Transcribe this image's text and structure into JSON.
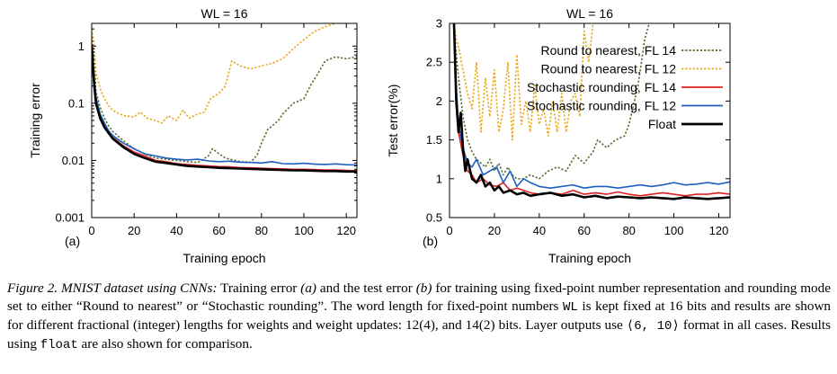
{
  "colors": {
    "round_fl14": "#556b2f",
    "round_fl12": "#e6a817",
    "stoch_fl14": "#e02020",
    "stoch_fl12": "#1f5fbf",
    "float": "#000000"
  },
  "chart_data": [
    {
      "id": "a",
      "panel_label": "(a)",
      "type": "line",
      "title": "WL = 16",
      "xlabel": "Training epoch",
      "ylabel": "Training error",
      "yscale": "log",
      "xlim": [
        0,
        125
      ],
      "ylim": [
        0.001,
        2.5
      ],
      "xticks": [
        0,
        20,
        40,
        60,
        80,
        100,
        120
      ],
      "xtick_labels": [
        "0",
        "20",
        "40",
        "60",
        "80",
        "100",
        "120"
      ],
      "yticks": [
        0.001,
        0.01,
        0.1,
        1
      ],
      "ytick_labels": [
        "0.001",
        "0.01",
        "0.1",
        "1"
      ],
      "series": [
        {
          "name": "Round to nearest, FL 14",
          "style": "dotted",
          "color_key": "round_fl14",
          "x": [
            0,
            1,
            2,
            4,
            6,
            8,
            10,
            15,
            20,
            25,
            30,
            35,
            40,
            45,
            50,
            55,
            57,
            60,
            63,
            65,
            70,
            75,
            78,
            80,
            83,
            85,
            88,
            90,
            95,
            100,
            103,
            107,
            110,
            115,
            120,
            125
          ],
          "y": [
            2.0,
            0.7,
            0.16,
            0.085,
            0.055,
            0.04,
            0.032,
            0.022,
            0.016,
            0.013,
            0.011,
            0.0105,
            0.01,
            0.0095,
            0.0092,
            0.012,
            0.016,
            0.013,
            0.011,
            0.0105,
            0.0095,
            0.0093,
            0.0125,
            0.02,
            0.035,
            0.04,
            0.05,
            0.065,
            0.1,
            0.12,
            0.2,
            0.35,
            0.55,
            0.65,
            0.6,
            0.65
          ]
        },
        {
          "name": "Round to nearest, FL 12",
          "style": "dotted",
          "color_key": "round_fl12",
          "x": [
            0,
            1,
            2,
            4,
            6,
            8,
            10,
            13,
            16,
            20,
            23,
            26,
            30,
            33,
            36,
            40,
            43,
            46,
            50,
            53,
            56,
            60,
            63,
            66,
            70,
            75,
            80,
            85,
            90,
            95,
            100,
            105,
            110,
            115,
            120
          ],
          "y": [
            2.0,
            1.2,
            0.35,
            0.18,
            0.12,
            0.09,
            0.075,
            0.065,
            0.06,
            0.058,
            0.07,
            0.055,
            0.05,
            0.045,
            0.06,
            0.05,
            0.075,
            0.055,
            0.065,
            0.07,
            0.12,
            0.15,
            0.2,
            0.55,
            0.45,
            0.4,
            0.45,
            0.5,
            0.6,
            0.9,
            1.3,
            1.8,
            2.2,
            2.5,
            2.8
          ]
        },
        {
          "name": "Stochastic rounding, FL 14",
          "style": "solid",
          "color_key": "stoch_fl14",
          "x": [
            0,
            1,
            2,
            4,
            6,
            8,
            10,
            15,
            20,
            25,
            30,
            35,
            40,
            45,
            50,
            55,
            60,
            65,
            70,
            75,
            80,
            85,
            90,
            95,
            100,
            105,
            110,
            115,
            120,
            125
          ],
          "y": [
            1.1,
            0.3,
            0.12,
            0.06,
            0.04,
            0.03,
            0.025,
            0.018,
            0.014,
            0.012,
            0.01,
            0.0095,
            0.0088,
            0.0085,
            0.0082,
            0.008,
            0.0078,
            0.0077,
            0.0075,
            0.0074,
            0.0073,
            0.0072,
            0.0071,
            0.007,
            0.007,
            0.0069,
            0.0068,
            0.0068,
            0.0067,
            0.0066
          ]
        },
        {
          "name": "Stochastic rounding, FL 12",
          "style": "solid",
          "color_key": "stoch_fl12",
          "x": [
            0,
            1,
            2,
            4,
            6,
            8,
            10,
            15,
            20,
            25,
            30,
            35,
            40,
            45,
            50,
            55,
            60,
            65,
            70,
            75,
            80,
            85,
            90,
            95,
            100,
            105,
            110,
            115,
            120,
            125
          ],
          "y": [
            1.1,
            0.35,
            0.13,
            0.065,
            0.045,
            0.033,
            0.027,
            0.02,
            0.016,
            0.013,
            0.012,
            0.011,
            0.0105,
            0.0102,
            0.0105,
            0.0098,
            0.0095,
            0.0097,
            0.0093,
            0.0092,
            0.009,
            0.0095,
            0.0088,
            0.0087,
            0.0089,
            0.0086,
            0.0085,
            0.0087,
            0.0084,
            0.0083
          ]
        },
        {
          "name": "Float",
          "style": "solid",
          "color_key": "float",
          "x": [
            0,
            1,
            2,
            4,
            6,
            8,
            10,
            15,
            20,
            25,
            30,
            35,
            40,
            45,
            50,
            55,
            60,
            65,
            70,
            75,
            80,
            85,
            90,
            95,
            100,
            105,
            110,
            115,
            120,
            125
          ],
          "y": [
            1.0,
            0.25,
            0.1,
            0.055,
            0.038,
            0.03,
            0.024,
            0.017,
            0.013,
            0.011,
            0.0095,
            0.009,
            0.0085,
            0.008,
            0.0078,
            0.0076,
            0.0074,
            0.0073,
            0.0072,
            0.0071,
            0.007,
            0.0069,
            0.0068,
            0.0067,
            0.0067,
            0.0066,
            0.0065,
            0.0065,
            0.0064,
            0.0064
          ]
        }
      ]
    },
    {
      "id": "b",
      "panel_label": "(b)",
      "type": "line",
      "title": "WL = 16",
      "xlabel": "Training epoch",
      "ylabel": "Test error(%)",
      "yscale": "linear",
      "xlim": [
        0,
        125
      ],
      "ylim": [
        0.5,
        3
      ],
      "xticks": [
        0,
        20,
        40,
        60,
        80,
        100,
        120
      ],
      "xtick_labels": [
        "0",
        "20",
        "40",
        "60",
        "80",
        "100",
        "120"
      ],
      "yticks": [
        0.5,
        1,
        1.5,
        2,
        2.5,
        3
      ],
      "ytick_labels": [
        "0.5",
        "1",
        "1.5",
        "2",
        "2.5",
        "3"
      ],
      "legend_position": "top-right",
      "series": [
        {
          "name": "Round to nearest, FL 14",
          "style": "dotted",
          "color_key": "round_fl14",
          "x": [
            2,
            3,
            4,
            6,
            8,
            10,
            12,
            14,
            16,
            18,
            20,
            22,
            24,
            26,
            28,
            30,
            33,
            36,
            40,
            44,
            48,
            52,
            56,
            60,
            64,
            66,
            70,
            74,
            78,
            80,
            84,
            87,
            89
          ],
          "y": [
            3.0,
            2.6,
            2.3,
            1.8,
            1.5,
            1.35,
            1.25,
            1.2,
            1.15,
            1.25,
            1.1,
            1.2,
            1.05,
            1.15,
            1.05,
            1.0,
            1.0,
            1.05,
            1.0,
            1.1,
            1.15,
            1.1,
            1.3,
            1.2,
            1.35,
            1.5,
            1.4,
            1.5,
            1.55,
            1.7,
            2.2,
            2.8,
            3.0
          ]
        },
        {
          "name": "Round to nearest, FL 12",
          "style": "dotted",
          "color_key": "round_fl12",
          "x": [
            2,
            3,
            4,
            6,
            8,
            10,
            12,
            14,
            16,
            18,
            20,
            22,
            24,
            26,
            28,
            30,
            32,
            34,
            36,
            38,
            40,
            42,
            44,
            46,
            48,
            50,
            52,
            54,
            56,
            58,
            60,
            62,
            64
          ],
          "y": [
            3.0,
            2.8,
            2.7,
            2.4,
            2.1,
            1.9,
            2.5,
            1.6,
            2.3,
            1.8,
            2.4,
            1.6,
            1.9,
            2.5,
            1.5,
            2.6,
            1.7,
            2.0,
            1.6,
            2.2,
            1.7,
            1.9,
            1.55,
            2.0,
            1.6,
            2.1,
            1.6,
            2.0,
            2.1,
            1.8,
            2.9,
            2.5,
            3.0
          ]
        },
        {
          "name": "Stochastic rounding, FL 14",
          "style": "solid",
          "color_key": "stoch_fl14",
          "x": [
            2,
            3,
            4,
            6,
            8,
            10,
            12,
            15,
            18,
            21,
            24,
            27,
            30,
            33,
            36,
            40,
            45,
            50,
            55,
            60,
            65,
            70,
            75,
            80,
            85,
            90,
            95,
            100,
            105,
            110,
            115,
            120,
            125
          ],
          "y": [
            3.0,
            2.0,
            1.6,
            1.3,
            1.1,
            1.05,
            0.95,
            1.0,
            0.92,
            0.9,
            0.95,
            0.85,
            0.88,
            0.85,
            0.82,
            0.8,
            0.82,
            0.8,
            0.85,
            0.8,
            0.82,
            0.8,
            0.83,
            0.8,
            0.78,
            0.8,
            0.82,
            0.8,
            0.78,
            0.8,
            0.8,
            0.82,
            0.8
          ]
        },
        {
          "name": "Stochastic rounding, FL 12",
          "style": "solid",
          "color_key": "stoch_fl12",
          "x": [
            2,
            3,
            4,
            6,
            8,
            10,
            12,
            15,
            18,
            21,
            24,
            27,
            30,
            33,
            36,
            40,
            45,
            50,
            55,
            60,
            65,
            70,
            75,
            80,
            85,
            90,
            95,
            100,
            105,
            110,
            115,
            120,
            125
          ],
          "y": [
            3.0,
            2.2,
            1.7,
            1.4,
            1.2,
            1.15,
            1.25,
            1.05,
            1.1,
            1.15,
            0.95,
            1.1,
            0.9,
            1.0,
            0.95,
            0.9,
            0.88,
            0.9,
            0.92,
            0.88,
            0.9,
            0.9,
            0.88,
            0.9,
            0.92,
            0.9,
            0.92,
            0.95,
            0.92,
            0.93,
            0.95,
            0.93,
            0.96
          ]
        },
        {
          "name": "Float",
          "style": "solid",
          "color_key": "float",
          "x": [
            2,
            3,
            4,
            5,
            6,
            7,
            8,
            10,
            12,
            14,
            16,
            18,
            20,
            22,
            24,
            27,
            30,
            33,
            36,
            40,
            45,
            50,
            55,
            60,
            65,
            70,
            75,
            80,
            85,
            90,
            95,
            100,
            105,
            110,
            115,
            120,
            125
          ],
          "y": [
            3.0,
            2.0,
            1.6,
            1.85,
            1.4,
            1.1,
            1.25,
            1.0,
            0.95,
            1.05,
            0.9,
            0.95,
            0.85,
            0.9,
            0.82,
            0.85,
            0.8,
            0.82,
            0.78,
            0.8,
            0.82,
            0.78,
            0.8,
            0.76,
            0.78,
            0.75,
            0.77,
            0.76,
            0.75,
            0.76,
            0.75,
            0.74,
            0.76,
            0.75,
            0.74,
            0.75,
            0.76
          ]
        }
      ]
    }
  ],
  "caption": {
    "lead": "Figure 2. MNIST dataset using CNNs:",
    "s1": " Training error ",
    "a": "(a)",
    "s2": " and the test error ",
    "b": "(b)",
    "s3": " for training using fixed-point number representation and rounding mode set to either “Round to nearest” or “Stochastic rounding”. The word length for fixed-point numbers ",
    "wl": "WL",
    "s4": " is kept fixed at 16 bits and results are shown for different fractional (integer) lengths for weights and weight updates: 12(4), and 14(2) bits. Layer outputs use ",
    "fmt": "⟨6, 10⟩",
    "s5": " format in all cases. Results using ",
    "float": "float",
    "s6": " are also shown for comparison."
  }
}
